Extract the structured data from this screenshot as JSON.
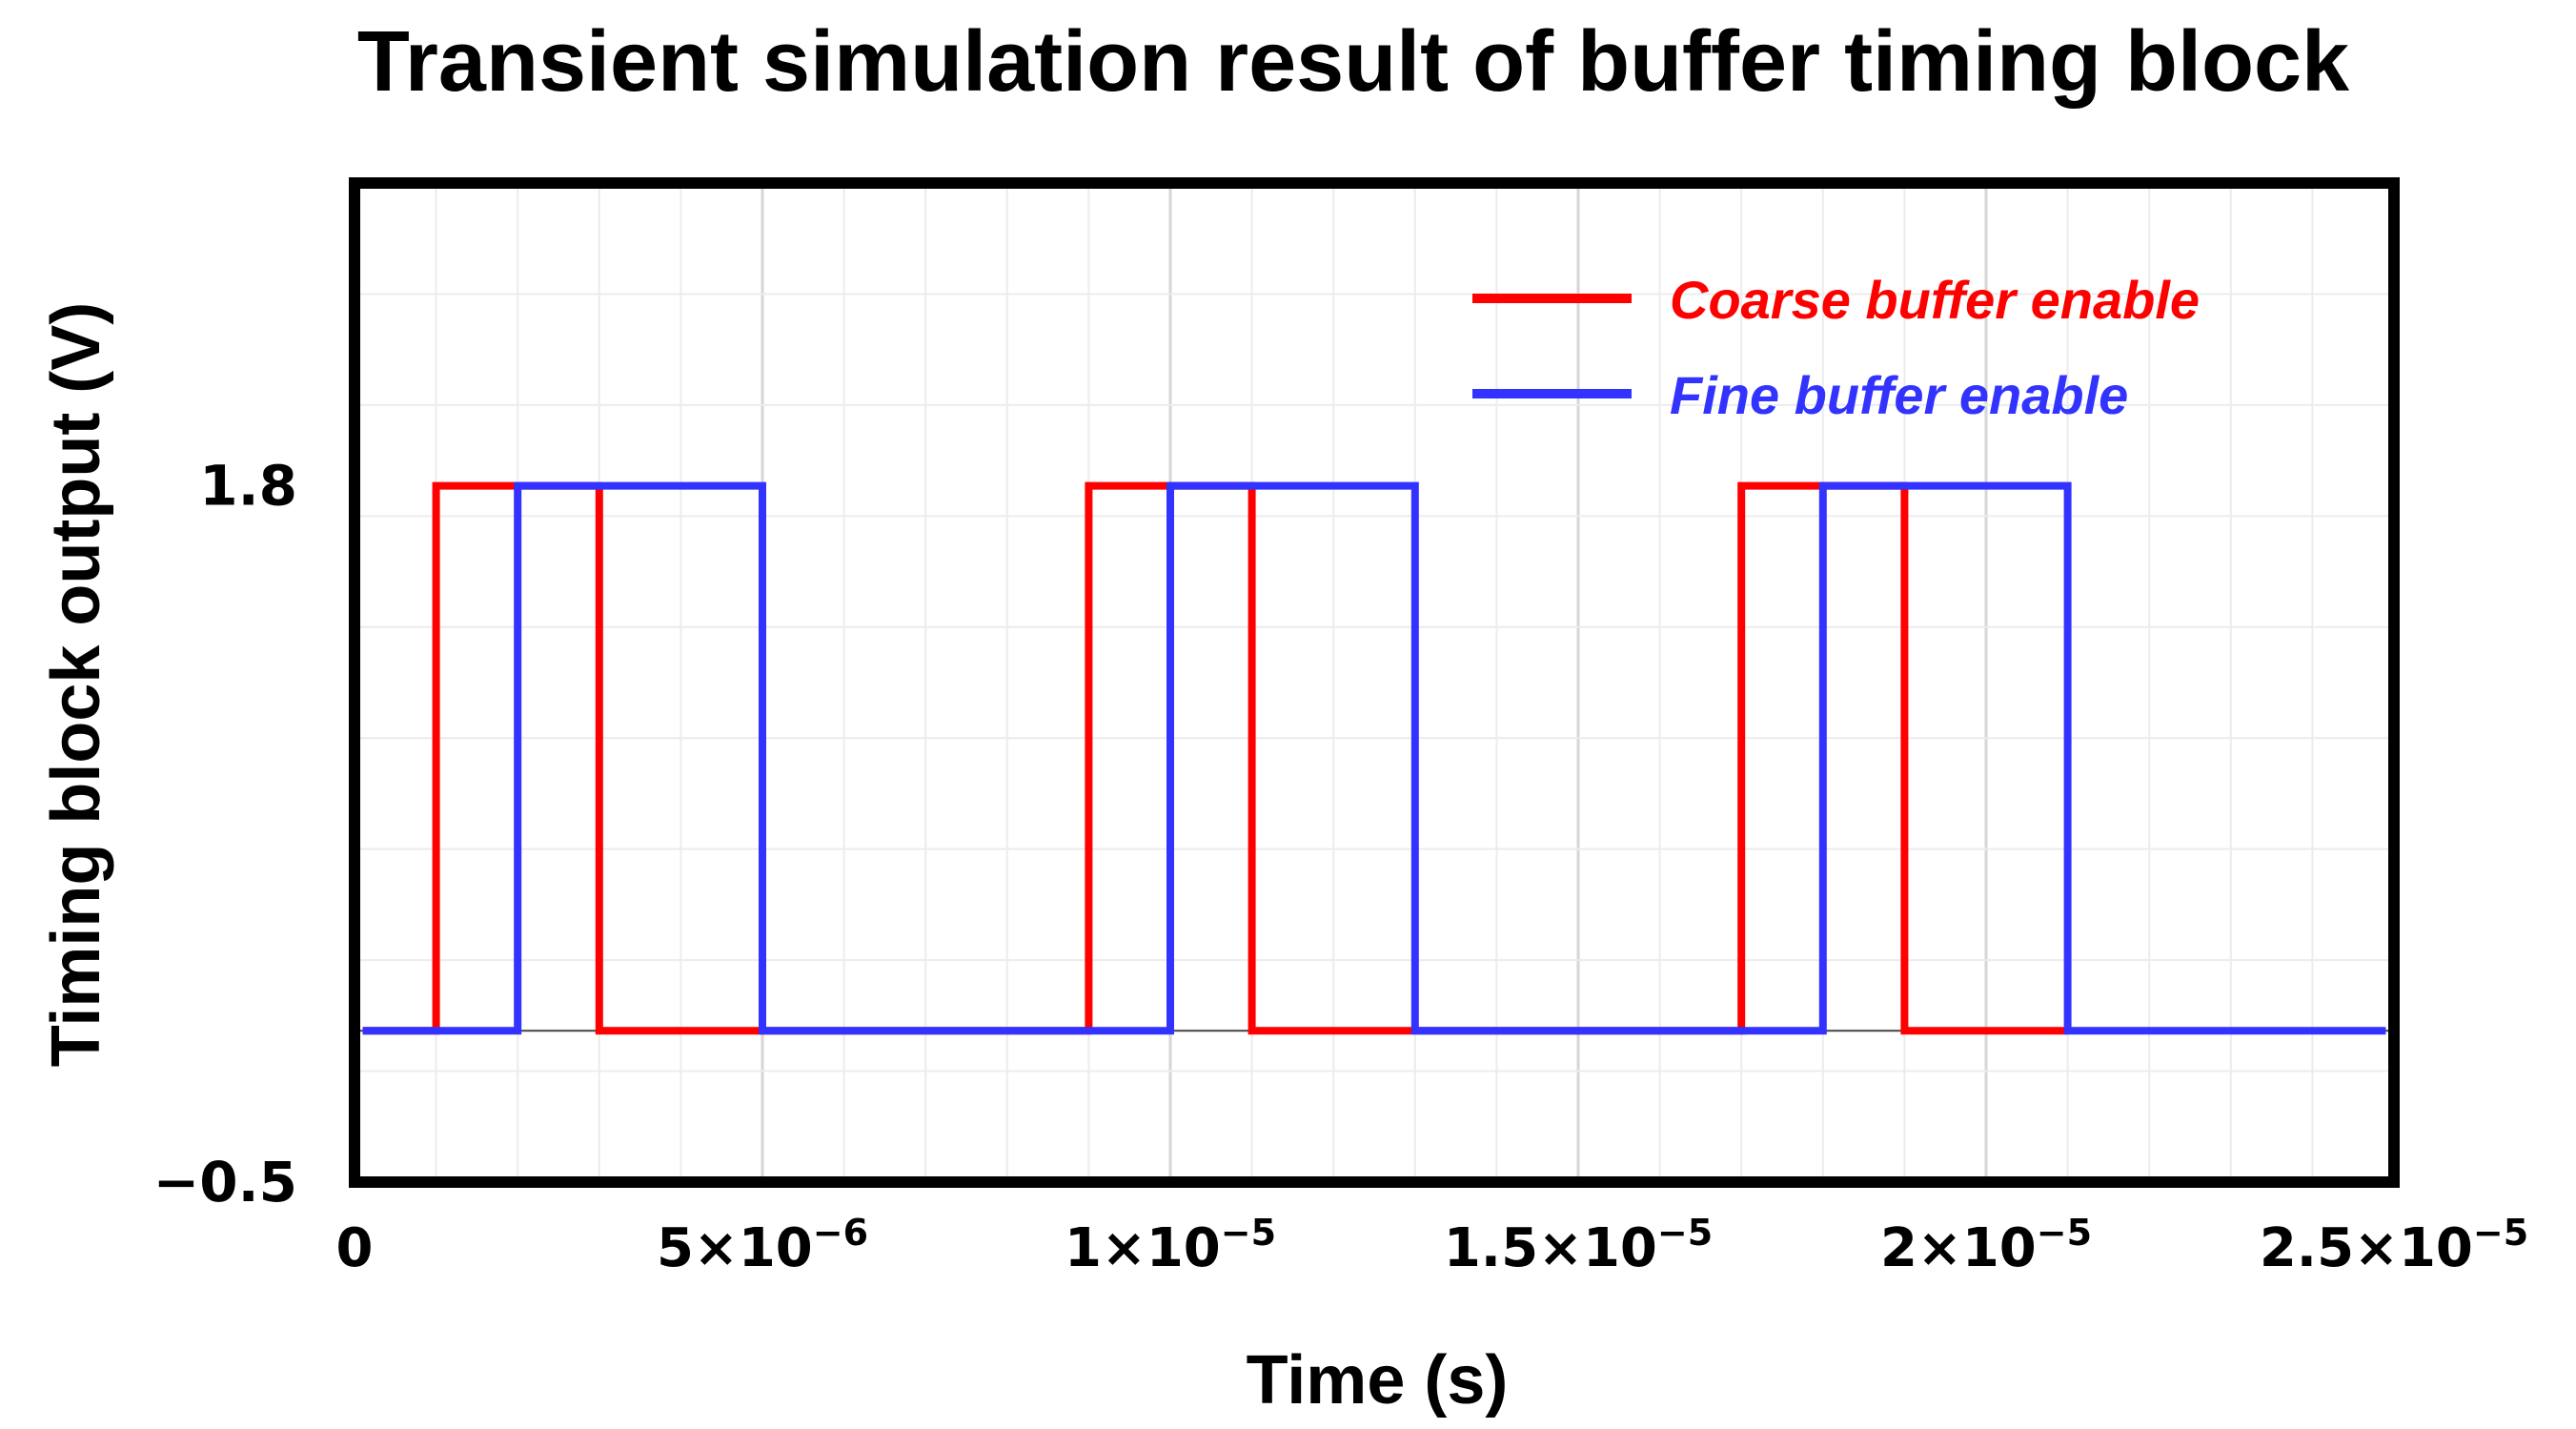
{
  "chart_data": {
    "type": "line",
    "title": "Transient simulation result of buffer timing block",
    "xlabel": "Time (s)",
    "ylabel": "Timing block output  (V)",
    "xlim": [
      0,
      2.5e-05
    ],
    "ylim": [
      -0.5,
      2.8
    ],
    "x_ticks": [
      {
        "value": 0,
        "mantissa": "0",
        "exponent": ""
      },
      {
        "value": 5e-06,
        "mantissa": "5×10",
        "exponent": "−6"
      },
      {
        "value": 1e-05,
        "mantissa": "1×10",
        "exponent": "−5"
      },
      {
        "value": 1.5e-05,
        "mantissa": "1.5×10",
        "exponent": "−5"
      },
      {
        "value": 2e-05,
        "mantissa": "2×10",
        "exponent": "−5"
      },
      {
        "value": 2.5e-05,
        "mantissa": "2.5×10",
        "exponent": "−5"
      }
    ],
    "y_ticks": [
      {
        "value": 1.8,
        "label": "1.8"
      },
      {
        "value": -0.5,
        "label": "−0.5"
      }
    ],
    "grid": true,
    "legend_position": "top-right",
    "series": [
      {
        "name": "Coarse buffer enable",
        "color": "#ff0000",
        "x": [
          1e-07,
          1e-06,
          1e-06,
          3e-06,
          3e-06,
          9e-06,
          9e-06,
          1.1e-05,
          1.1e-05,
          1.7e-05,
          1.7e-05,
          1.9e-05,
          1.9e-05,
          2.1e-05
        ],
        "y": [
          0,
          0,
          1.8,
          1.8,
          0,
          0,
          1.8,
          1.8,
          0,
          0,
          1.8,
          1.8,
          0,
          0
        ]
      },
      {
        "name": "Fine buffer enable",
        "color": "#3333ff",
        "x": [
          1e-07,
          2e-06,
          2e-06,
          5e-06,
          5e-06,
          1e-05,
          1e-05,
          1.3e-05,
          1.3e-05,
          1.8e-05,
          1.8e-05,
          2.1e-05,
          2.1e-05,
          2.49e-05
        ],
        "y": [
          0,
          0,
          1.8,
          1.8,
          0,
          0,
          1.8,
          1.8,
          0,
          0,
          1.8,
          1.8,
          0,
          0
        ]
      }
    ]
  }
}
